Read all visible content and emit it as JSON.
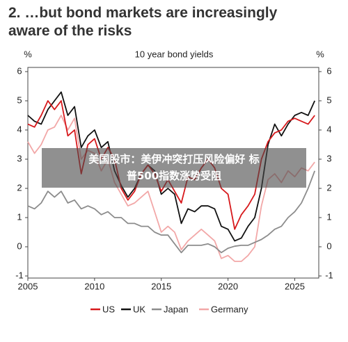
{
  "chart_data": {
    "type": "line",
    "title": "2. …but bond markets are increasingly aware of the risks",
    "subtitle": "10 year bond yields",
    "y_label": "%",
    "y2_label": "%",
    "x": [
      2005,
      2005.5,
      2006,
      2006.5,
      2007,
      2007.5,
      2008,
      2008.5,
      2009,
      2009.5,
      2010,
      2010.5,
      2011,
      2011.5,
      2012,
      2012.5,
      2013,
      2013.5,
      2014,
      2014.5,
      2015,
      2015.5,
      2016,
      2016.5,
      2017,
      2017.5,
      2018,
      2018.5,
      2019,
      2019.5,
      2020,
      2020.5,
      2021,
      2021.5,
      2022,
      2022.5,
      2023,
      2023.5,
      2024,
      2024.5,
      2025,
      2025.5,
      2026,
      2026.5
    ],
    "series": [
      {
        "name": "US",
        "color": "#d7191c",
        "values": [
          4.2,
          4.1,
          4.5,
          5.0,
          4.7,
          5.0,
          3.8,
          4.0,
          2.5,
          3.5,
          3.7,
          3.0,
          3.4,
          3.0,
          2.0,
          1.6,
          1.9,
          2.5,
          2.8,
          2.5,
          1.9,
          2.3,
          1.9,
          1.5,
          2.4,
          2.3,
          2.7,
          3.0,
          2.7,
          2.0,
          1.8,
          0.6,
          1.1,
          1.4,
          1.8,
          3.0,
          3.6,
          3.9,
          4.0,
          4.3,
          4.4,
          4.3,
          4.2,
          4.5
        ]
      },
      {
        "name": "UK",
        "color": "#111111",
        "values": [
          4.5,
          4.3,
          4.2,
          4.7,
          5.0,
          5.3,
          4.5,
          4.8,
          3.4,
          3.8,
          4.0,
          3.4,
          3.6,
          2.6,
          2.1,
          1.7,
          2.0,
          2.5,
          2.8,
          2.6,
          1.8,
          2.0,
          1.8,
          0.8,
          1.3,
          1.2,
          1.4,
          1.4,
          1.3,
          0.7,
          0.6,
          0.2,
          0.3,
          0.7,
          1.0,
          2.0,
          3.5,
          4.2,
          3.8,
          4.2,
          4.5,
          4.6,
          4.5,
          5.0
        ]
      },
      {
        "name": "Japan",
        "color": "#8c8c8c",
        "values": [
          1.4,
          1.3,
          1.5,
          1.9,
          1.7,
          1.9,
          1.5,
          1.6,
          1.3,
          1.4,
          1.3,
          1.1,
          1.2,
          1.0,
          1.0,
          0.8,
          0.8,
          0.7,
          0.7,
          0.5,
          0.4,
          0.4,
          0.1,
          -0.2,
          0.05,
          0.05,
          0.05,
          0.1,
          0.0,
          -0.2,
          -0.05,
          0.02,
          0.05,
          0.05,
          0.15,
          0.25,
          0.4,
          0.6,
          0.7,
          1.0,
          1.2,
          1.5,
          2.0,
          2.6
        ]
      },
      {
        "name": "Germany",
        "color": "#f2a7a7",
        "values": [
          3.6,
          3.2,
          3.5,
          4.0,
          4.1,
          4.5,
          4.0,
          4.4,
          3.0,
          3.3,
          3.2,
          2.6,
          3.0,
          2.2,
          1.8,
          1.4,
          1.5,
          1.7,
          1.9,
          1.2,
          0.5,
          0.7,
          0.5,
          -0.1,
          0.2,
          0.4,
          0.6,
          0.4,
          0.2,
          -0.4,
          -0.3,
          -0.5,
          -0.5,
          -0.3,
          0.0,
          1.4,
          2.3,
          2.5,
          2.2,
          2.6,
          2.4,
          2.7,
          2.6,
          2.9
        ]
      }
    ],
    "xlim": [
      2005,
      2026.8
    ],
    "xticks": [
      2005,
      2010,
      2015,
      2020,
      2025
    ],
    "ylim": [
      -1,
      6
    ],
    "yticks": [
      -1,
      0,
      1,
      2,
      3,
      4,
      5,
      6
    ],
    "y2lim": [
      -1,
      6
    ],
    "y2ticks": [
      -1,
      0,
      1,
      2,
      3,
      4,
      5,
      6
    ],
    "legend": "bottom"
  },
  "overlay": {
    "lines": [
      "美国股市：美伊冲突打压风险偏好 标",
      "普500指数涨势受阻"
    ]
  }
}
